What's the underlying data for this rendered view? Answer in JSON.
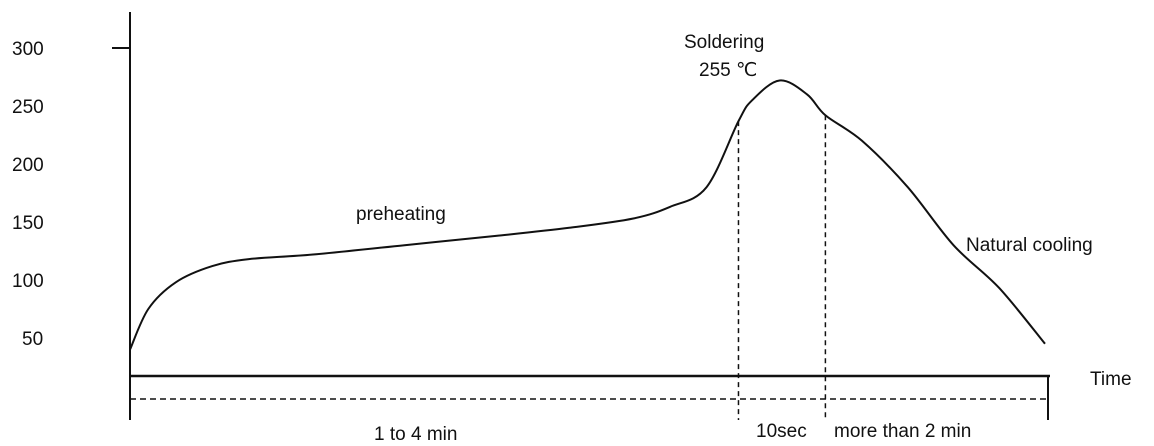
{
  "chart_data": {
    "type": "line",
    "title": "",
    "xlabel": "Time",
    "ylabel": "",
    "yticks": [
      "300",
      "250",
      "200",
      "150",
      "100",
      "50"
    ],
    "ylim": [
      20,
      315
    ],
    "curve": {
      "x_unit": "relative time",
      "points": [
        [
          0,
          40
        ],
        [
          2,
          75
        ],
        [
          5,
          98
        ],
        [
          9,
          112
        ],
        [
          13,
          118
        ],
        [
          20,
          122
        ],
        [
          30,
          130
        ],
        [
          40,
          138
        ],
        [
          48,
          145
        ],
        [
          55,
          153
        ],
        [
          59,
          163
        ],
        [
          63,
          180
        ],
        [
          66.5,
          237
        ],
        [
          68,
          255
        ],
        [
          71,
          272
        ],
        [
          74,
          260
        ],
        [
          76,
          242
        ],
        [
          80,
          220
        ],
        [
          85,
          180
        ],
        [
          90,
          130
        ],
        [
          95,
          93
        ],
        [
          100,
          45
        ]
      ]
    },
    "phase_markers_x": [
      66.5,
      76
    ],
    "annotations": {
      "preheating": "preheating",
      "soldering_line1": "Soldering",
      "soldering_line2": "255 ℃",
      "natural_cooling": "Natural cooling"
    },
    "durations": {
      "preheat": "1 to 4 min",
      "soldering": "10sec",
      "cooling": "more than 2 min"
    }
  }
}
